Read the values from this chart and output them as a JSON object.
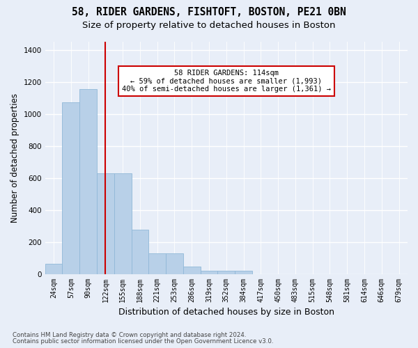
{
  "title": "58, RIDER GARDENS, FISHTOFT, BOSTON, PE21 0BN",
  "subtitle": "Size of property relative to detached houses in Boston",
  "xlabel": "Distribution of detached houses by size in Boston",
  "ylabel": "Number of detached properties",
  "footnote1": "Contains HM Land Registry data © Crown copyright and database right 2024.",
  "footnote2": "Contains public sector information licensed under the Open Government Licence v3.0.",
  "bins": [
    "24sqm",
    "57sqm",
    "90sqm",
    "122sqm",
    "155sqm",
    "188sqm",
    "221sqm",
    "253sqm",
    "286sqm",
    "319sqm",
    "352sqm",
    "384sqm",
    "417sqm",
    "450sqm",
    "483sqm",
    "515sqm",
    "548sqm",
    "581sqm",
    "614sqm",
    "646sqm",
    "679sqm"
  ],
  "values": [
    65,
    1070,
    1155,
    630,
    630,
    275,
    130,
    130,
    45,
    20,
    20,
    20,
    0,
    0,
    0,
    0,
    0,
    0,
    0,
    0,
    0
  ],
  "bar_color": "#b8d0e8",
  "bar_edge_color": "#90b8d8",
  "vline_color": "#cc0000",
  "annotation_text": "58 RIDER GARDENS: 114sqm\n← 59% of detached houses are smaller (1,993)\n40% of semi-detached houses are larger (1,361) →",
  "annotation_box_facecolor": "#ffffff",
  "annotation_box_edgecolor": "#cc0000",
  "ylim": [
    0,
    1450
  ],
  "yticks": [
    0,
    200,
    400,
    600,
    800,
    1000,
    1200,
    1400
  ],
  "background_color": "#e8eef8",
  "plot_background_color": "#e8eef8",
  "grid_color": "#ffffff",
  "title_fontsize": 10.5,
  "subtitle_fontsize": 9.5,
  "tick_fontsize": 7,
  "ylabel_fontsize": 8.5,
  "xlabel_fontsize": 9,
  "footnote_fontsize": 6.2,
  "annotation_fontsize": 7.5
}
